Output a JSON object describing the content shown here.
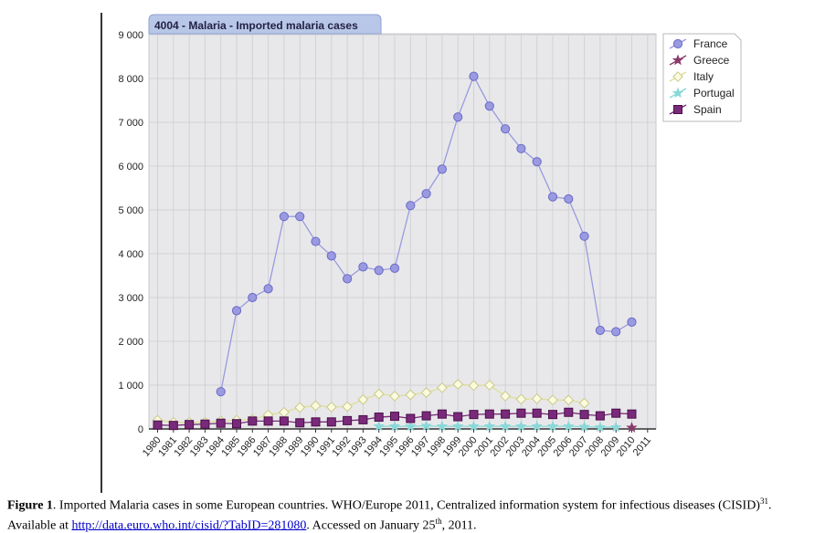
{
  "chart_data": {
    "type": "line",
    "title": "4004 - Malaria - Imported malaria cases",
    "xlabel": "",
    "ylabel": "",
    "ylim": [
      0,
      9000
    ],
    "y_ticks": [
      "0",
      "1 000",
      "2 000",
      "3 000",
      "4 000",
      "5 000",
      "6 000",
      "7 000",
      "8 000",
      "9 000"
    ],
    "y_tick_values": [
      0,
      1000,
      2000,
      3000,
      4000,
      5000,
      6000,
      7000,
      8000,
      9000
    ],
    "x": [
      "1980",
      "1981",
      "1982",
      "1983",
      "1984",
      "1985",
      "1986",
      "1987",
      "1988",
      "1989",
      "1990",
      "1991",
      "1992",
      "1993",
      "1994",
      "1995",
      "1996",
      "1997",
      "1998",
      "1999",
      "2000",
      "2001",
      "2002",
      "2003",
      "2004",
      "2005",
      "2006",
      "2007",
      "2008",
      "2009",
      "2010",
      "2011"
    ],
    "grid": true,
    "legend_position": "right",
    "series": [
      {
        "name": "France",
        "color": "#9a9ae0",
        "marker": "circle",
        "values": [
          null,
          null,
          null,
          null,
          850,
          2700,
          3000,
          3200,
          4850,
          4850,
          4280,
          3950,
          3430,
          3700,
          3620,
          3670,
          5100,
          5370,
          5930,
          7120,
          8050,
          7370,
          6850,
          6400,
          6100,
          5300,
          5250,
          4400,
          2250,
          2220,
          2440,
          null
        ]
      },
      {
        "name": "Greece",
        "color": "#8a3a6a",
        "marker": "star",
        "values": [
          null,
          null,
          null,
          null,
          null,
          null,
          null,
          null,
          null,
          null,
          null,
          null,
          null,
          null,
          null,
          null,
          null,
          null,
          null,
          null,
          null,
          null,
          null,
          null,
          null,
          null,
          null,
          null,
          null,
          null,
          30,
          null
        ]
      },
      {
        "name": "Italy",
        "color": "#dede9a",
        "marker": "diamond",
        "values": [
          200,
          150,
          150,
          150,
          180,
          200,
          220,
          320,
          380,
          490,
          530,
          500,
          510,
          670,
          800,
          750,
          780,
          830,
          940,
          1020,
          990,
          1000,
          750,
          680,
          690,
          660,
          660,
          590,
          null,
          null,
          null,
          null
        ]
      },
      {
        "name": "Portugal",
        "color": "#8ad8d8",
        "marker": "star",
        "values": [
          null,
          null,
          null,
          null,
          null,
          null,
          null,
          null,
          null,
          null,
          null,
          null,
          null,
          null,
          60,
          60,
          60,
          70,
          60,
          60,
          60,
          60,
          60,
          60,
          60,
          60,
          60,
          50,
          40,
          40,
          null,
          null
        ]
      },
      {
        "name": "Spain",
        "color": "#7a2a7a",
        "marker": "square",
        "values": [
          90,
          80,
          100,
          110,
          130,
          120,
          180,
          180,
          180,
          140,
          160,
          160,
          190,
          210,
          270,
          290,
          240,
          300,
          340,
          280,
          330,
          340,
          340,
          360,
          360,
          330,
          380,
          330,
          300,
          360,
          340,
          null
        ]
      }
    ]
  },
  "caption": {
    "fig_label": "Figure 1",
    "text_1": ". Imported Malaria cases in some European countries. WHO/Europe 2011, Centralized information system for infectious diseases (CISID)",
    "sup_ref": "31",
    "text_2": ". Available at ",
    "link": "http://data.euro.who.int/cisid/?TabID=281080",
    "text_3": ". Accessed on January 25",
    "sup_th": "th",
    "text_4": ", 2011."
  }
}
